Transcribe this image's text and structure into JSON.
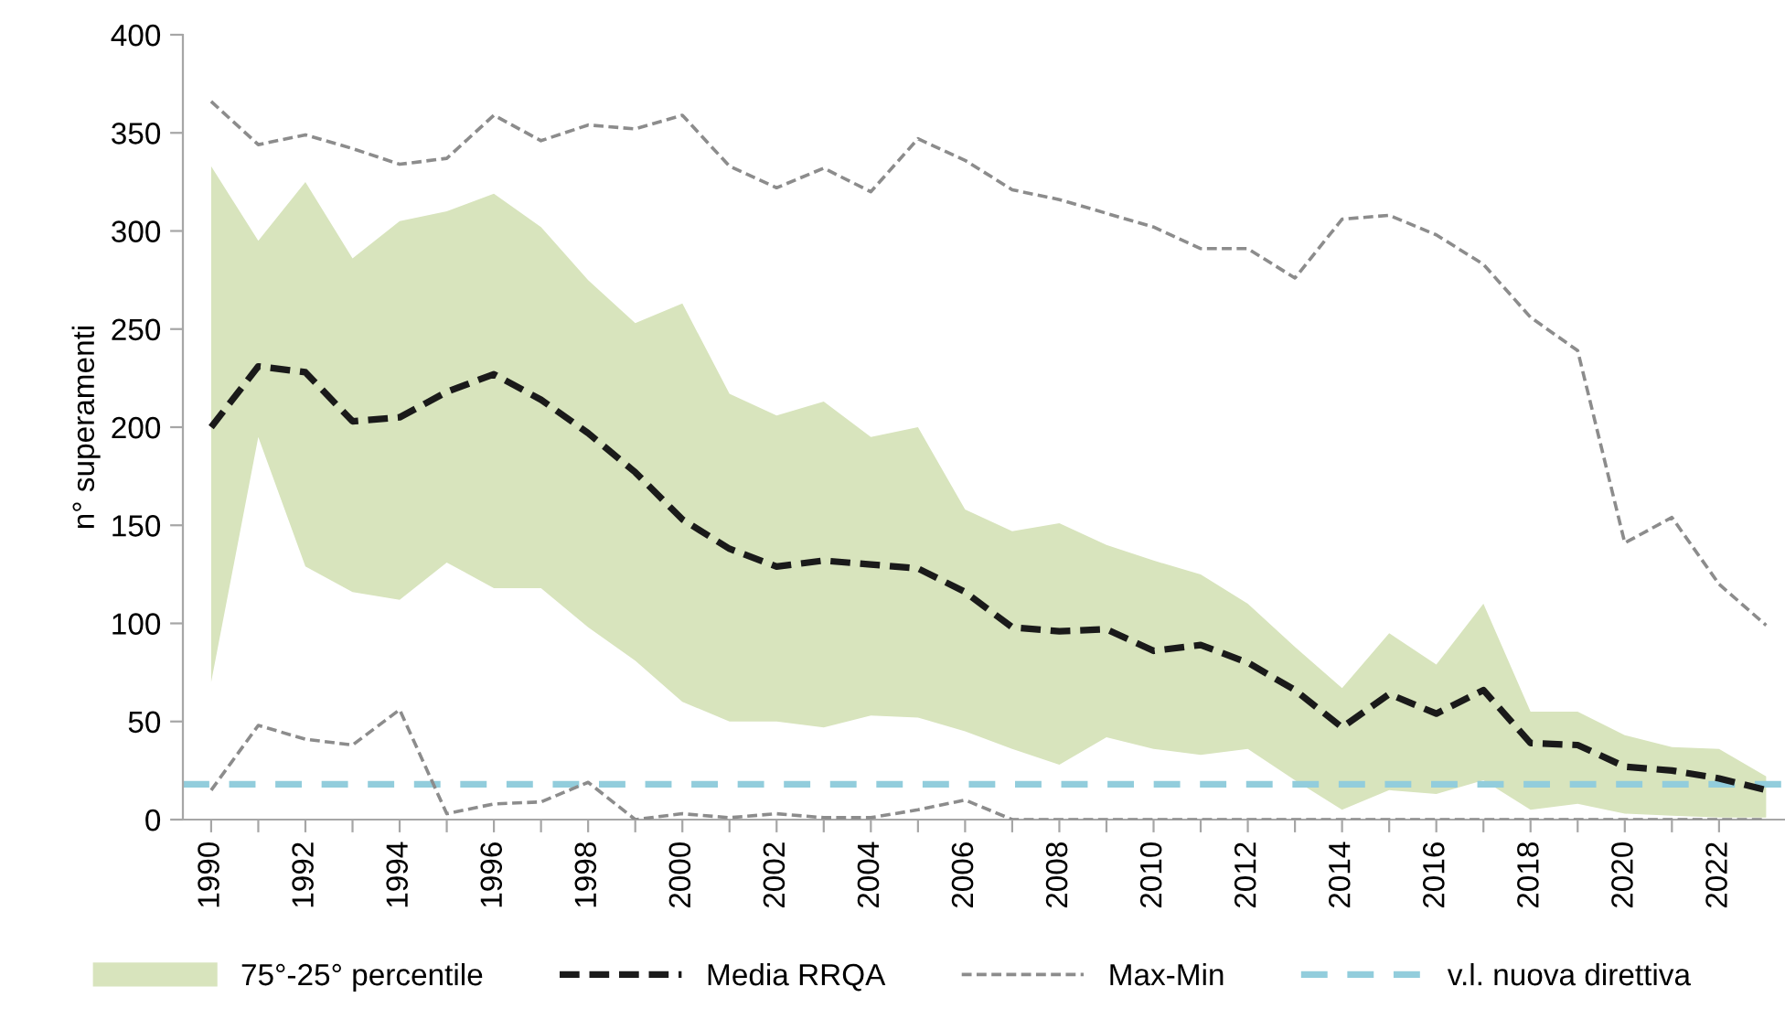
{
  "chart_data": {
    "type": "line",
    "ylabel": "n° superamenti",
    "x": [
      1990,
      1991,
      1992,
      1993,
      1994,
      1995,
      1996,
      1997,
      1998,
      1999,
      2000,
      2001,
      2002,
      2003,
      2004,
      2005,
      2006,
      2007,
      2008,
      2009,
      2010,
      2011,
      2012,
      2013,
      2014,
      2015,
      2016,
      2017,
      2018,
      2019,
      2020,
      2021,
      2022,
      2023
    ],
    "series": [
      {
        "name": "Media RRQA",
        "color": "#1a1a1a",
        "line_style": "dashed",
        "values": [
          200,
          231,
          228,
          203,
          205,
          218,
          227,
          214,
          197,
          177,
          153,
          138,
          129,
          132,
          130,
          128,
          116,
          98,
          96,
          97,
          86,
          89,
          80,
          66,
          47,
          64,
          54,
          66,
          39,
          38,
          27,
          25,
          21,
          15
        ],
        "upper": [
          333,
          295,
          325,
          286,
          305,
          310,
          319,
          302,
          275,
          253,
          263,
          217,
          206,
          213,
          195,
          200,
          158,
          147,
          151,
          140,
          132,
          125,
          110,
          88,
          67,
          95,
          79,
          110,
          55,
          55,
          43,
          37,
          36,
          22
        ],
        "lower": [
          70,
          195,
          129,
          116,
          112,
          131,
          118,
          118,
          98,
          81,
          60,
          50,
          50,
          47,
          53,
          52,
          45,
          36,
          28,
          42,
          36,
          33,
          36,
          20,
          5,
          15,
          13,
          20,
          5,
          8,
          3,
          2,
          1,
          1
        ]
      },
      {
        "name": "Max-Min",
        "color": "#8c8c8c",
        "line_style": "dashed",
        "values": [
          366,
          344,
          349,
          342,
          334,
          337,
          359,
          346,
          354,
          352,
          359,
          333,
          322,
          332,
          320,
          347,
          336,
          321,
          316,
          309,
          302,
          291,
          291,
          276,
          306,
          308,
          298,
          283,
          256,
          239,
          141,
          154,
          120,
          99
        ]
      },
      {
        "color": "#8c8c8c",
        "line_style": "dashed",
        "values": [
          15,
          48,
          41,
          38,
          56,
          3,
          8,
          9,
          19,
          0,
          3,
          1,
          3,
          1,
          1,
          5,
          10,
          0,
          0,
          0,
          0,
          0,
          0,
          0,
          0,
          0,
          0,
          0,
          0,
          0,
          0,
          0,
          0,
          0
        ]
      }
    ],
    "annotations": [
      "75°-25° percentile"
    ],
    "ref_lines": [
      {
        "axis": "y",
        "value": 18,
        "label": "v.l. nuova direttiva",
        "color": "#92cddc",
        "line_style": "dashed"
      }
    ],
    "xlim": [
      1989.4,
      2023.4
    ],
    "xticks": [
      1990,
      {
        "value": 1991,
        "label": null
      },
      1992,
      {
        "value": 1993,
        "label": null
      },
      1994,
      {
        "value": 1995,
        "label": null
      },
      1996,
      {
        "value": 1997,
        "label": null
      },
      1998,
      {
        "value": 1999,
        "label": null
      },
      2000,
      {
        "value": 2001,
        "label": null
      },
      2002,
      {
        "value": 2003,
        "label": null
      },
      2004,
      {
        "value": 2005,
        "label": null
      },
      2006,
      {
        "value": 2007,
        "label": null
      },
      2008,
      {
        "value": 2009,
        "label": null
      },
      2010,
      {
        "value": 2011,
        "label": null
      },
      2012,
      {
        "value": 2013,
        "label": null
      },
      2014,
      {
        "value": 2015,
        "label": null
      },
      2016,
      {
        "value": 2017,
        "label": null
      },
      2018,
      {
        "value": 2019,
        "label": null
      },
      2020,
      {
        "value": 2021,
        "label": null
      },
      2022
    ],
    "ylim": [
      0,
      400
    ],
    "yticks": [
      0,
      50,
      100,
      150,
      200,
      250,
      300,
      350,
      400
    ],
    "grid": false,
    "legend": "bottom",
    "marker": "none"
  }
}
